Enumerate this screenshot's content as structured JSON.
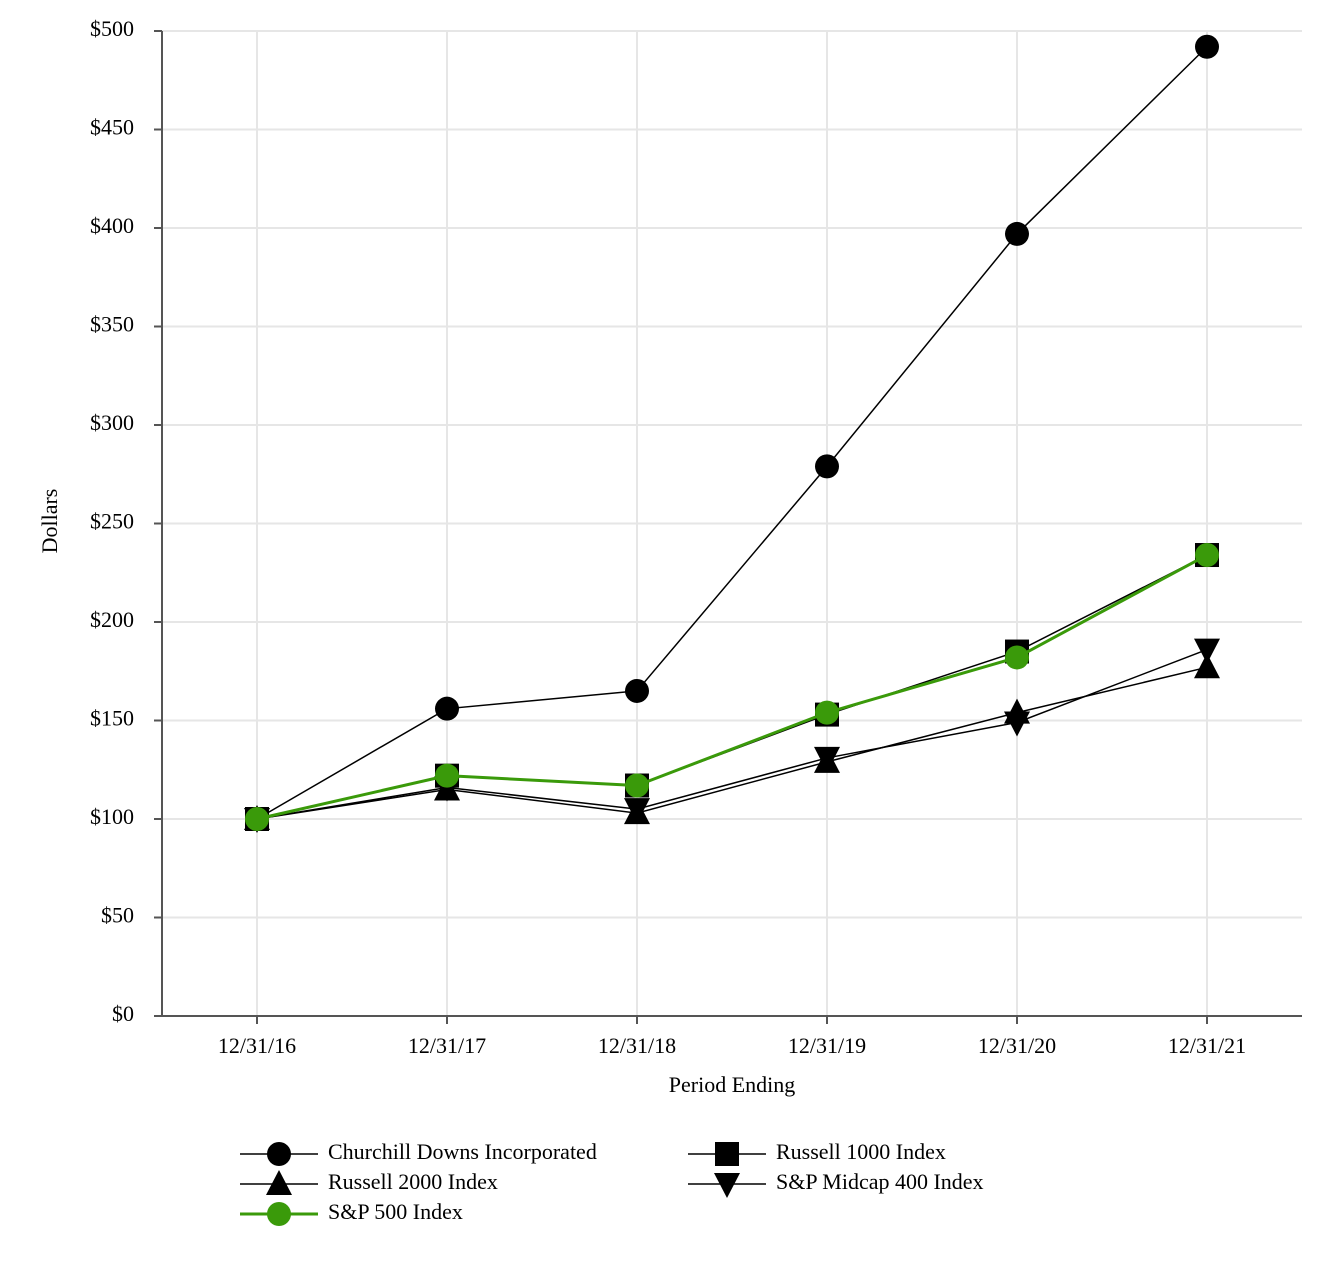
{
  "chart_data": {
    "type": "line",
    "x_label": "Period Ending",
    "y_label": "Dollars",
    "categories": [
      "12/31/16",
      "12/31/17",
      "12/31/18",
      "12/31/19",
      "12/31/20",
      "12/31/21"
    ],
    "series": [
      {
        "name": "Churchill Downs Incorporated",
        "color": "#000000",
        "marker": "circle",
        "values": [
          100,
          156,
          165,
          279,
          397,
          492
        ]
      },
      {
        "name": "Russell 1000 Index",
        "color": "#000000",
        "marker": "square",
        "values": [
          100,
          122,
          117,
          153,
          185,
          234
        ]
      },
      {
        "name": "Russell 2000 Index",
        "color": "#000000",
        "marker": "triangle-up",
        "values": [
          100,
          115,
          103,
          129,
          154,
          177
        ]
      },
      {
        "name": "S&P Midcap 400 Index",
        "color": "#000000",
        "marker": "triangle-down",
        "values": [
          100,
          116,
          105,
          131,
          149,
          186
        ]
      },
      {
        "name": "S&P 500 Index",
        "color": "#3a9a0a",
        "marker": "circle",
        "values": [
          100,
          122,
          117,
          154,
          182,
          234
        ]
      }
    ],
    "ylim": [
      0,
      500
    ],
    "yticks": [
      {
        "value": 0,
        "label": "$0"
      },
      {
        "value": 50,
        "label": "$50"
      },
      {
        "value": 100,
        "label": "$100"
      },
      {
        "value": 150,
        "label": "$150"
      },
      {
        "value": 200,
        "label": "$200"
      },
      {
        "value": 250,
        "label": "$250"
      },
      {
        "value": 300,
        "label": "$300"
      },
      {
        "value": 350,
        "label": "$350"
      },
      {
        "value": 400,
        "label": "$400"
      },
      {
        "value": 450,
        "label": "$450"
      },
      {
        "value": 500,
        "label": "$500"
      }
    ],
    "grid": true
  }
}
